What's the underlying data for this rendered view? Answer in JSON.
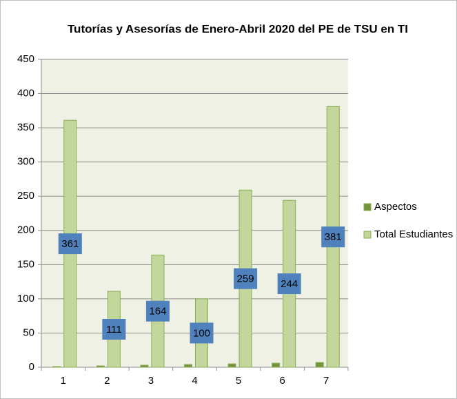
{
  "chart_data": {
    "type": "bar",
    "title": "Tutorías  y Asesorías de Enero-Abril 2020  del PE de TSU en TI",
    "categories": [
      "1",
      "2",
      "3",
      "4",
      "5",
      "6",
      "7"
    ],
    "series": [
      {
        "name": "Aspectos",
        "color": "#77933c",
        "values": [
          1,
          2,
          3,
          4,
          5,
          6,
          7
        ]
      },
      {
        "name": "Total Estudiantes",
        "color": "#c3d69b",
        "values": [
          361,
          111,
          164,
          100,
          259,
          244,
          381
        ]
      }
    ],
    "data_labels_series": 1,
    "ylim": [
      0,
      450
    ],
    "yticks": [
      0,
      50,
      100,
      150,
      200,
      250,
      300,
      350,
      400,
      450
    ],
    "grid": true,
    "legend": "right"
  }
}
